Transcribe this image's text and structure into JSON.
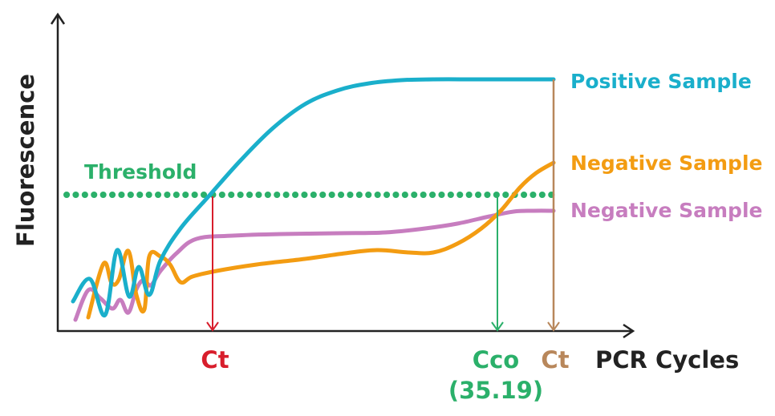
{
  "chart_data": {
    "type": "line",
    "title": "",
    "xlabel": "PCR Cycles",
    "ylabel": "Fluorescence",
    "grid": false,
    "series": [
      {
        "name": "Positive Sample",
        "color": "#1AAFCB",
        "points": [
          [
            91,
            376
          ],
          [
            112,
            348
          ],
          [
            131,
            393
          ],
          [
            146,
            312
          ],
          [
            161,
            370
          ],
          [
            173,
            333
          ],
          [
            186,
            368
          ],
          [
            200,
            325
          ],
          [
            225,
            285
          ],
          [
            260,
            245
          ],
          [
            300,
            200
          ],
          [
            340,
            160
          ],
          [
            380,
            130
          ],
          [
            420,
            113
          ],
          [
            460,
            104
          ],
          [
            500,
            100
          ],
          [
            540,
            99
          ],
          [
            600,
            99
          ],
          [
            690,
            99
          ]
        ]
      },
      {
        "name": "Negative Sample",
        "color": "#F39C12",
        "points": [
          [
            110,
            396
          ],
          [
            129,
            329
          ],
          [
            139,
            353
          ],
          [
            148,
            349
          ],
          [
            160,
            313
          ],
          [
            170,
            368
          ],
          [
            180,
            386
          ],
          [
            186,
            320
          ],
          [
            200,
            320
          ],
          [
            212,
            330
          ],
          [
            225,
            352
          ],
          [
            240,
            345
          ],
          [
            270,
            338
          ],
          [
            320,
            330
          ],
          [
            380,
            323
          ],
          [
            430,
            316
          ],
          [
            470,
            312
          ],
          [
            510,
            315
          ],
          [
            540,
            315
          ],
          [
            570,
            304
          ],
          [
            600,
            285
          ],
          [
            625,
            262
          ],
          [
            648,
            234
          ],
          [
            668,
            216
          ],
          [
            690,
            203
          ]
        ]
      },
      {
        "name": "Negative Sample",
        "color": "#C77DBF",
        "points": [
          [
            94,
            399
          ],
          [
            110,
            362
          ],
          [
            125,
            372
          ],
          [
            140,
            385
          ],
          [
            150,
            374
          ],
          [
            160,
            390
          ],
          [
            170,
            361
          ],
          [
            179,
            349
          ],
          [
            188,
            356
          ],
          [
            200,
            338
          ],
          [
            220,
            316
          ],
          [
            245,
            298
          ],
          [
            290,
            294
          ],
          [
            350,
            292
          ],
          [
            420,
            291
          ],
          [
            480,
            290
          ],
          [
            530,
            285
          ],
          [
            570,
            279
          ],
          [
            610,
            270
          ],
          [
            640,
            264
          ],
          [
            665,
            263
          ],
          [
            690,
            263
          ]
        ]
      }
    ],
    "threshold": {
      "label": "Threshold",
      "color": "#2BB06A"
    },
    "markers": [
      {
        "label": "Ct",
        "sub": "",
        "color": "#D81E2C",
        "x": 265
      },
      {
        "label": "Cco",
        "sub": "(35.19)",
        "color": "#2BB06A",
        "x": 620
      },
      {
        "label": "Ct",
        "sub": "",
        "color": "#B8875B",
        "x": 690
      }
    ],
    "axis_color": "#222222"
  }
}
